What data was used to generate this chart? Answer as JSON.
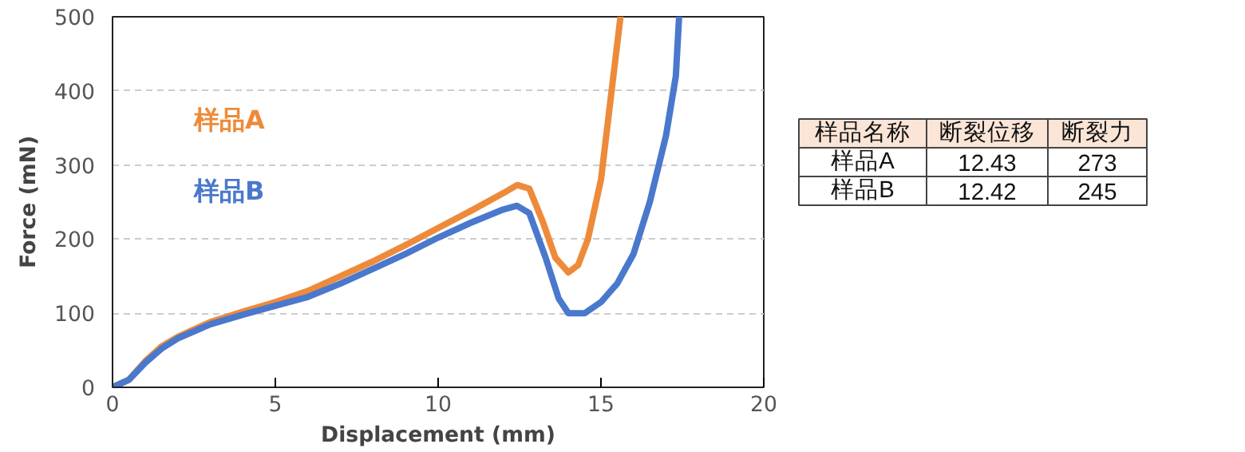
{
  "chart_data": [
    {
      "type": "line",
      "xlabel": "Displacement (mm)",
      "ylabel": "Force (mN)",
      "xlim": [
        0,
        20
      ],
      "ylim": [
        0,
        500
      ],
      "xticks": [
        0,
        5,
        10,
        15,
        20
      ],
      "yticks": [
        0,
        100,
        200,
        300,
        400,
        500
      ],
      "grid": "y",
      "line_style": "solid",
      "series": [
        {
          "name": "样品A",
          "color": "#ed8b3b",
          "x": [
            0,
            0.5,
            1,
            1.5,
            2,
            3,
            4,
            5,
            6,
            7,
            8,
            9,
            10,
            11,
            12,
            12.43,
            12.8,
            13.2,
            13.6,
            14,
            14.3,
            14.6,
            15,
            15.3,
            15.6
          ],
          "values": [
            0,
            10,
            35,
            55,
            68,
            88,
            102,
            115,
            130,
            150,
            170,
            192,
            215,
            238,
            262,
            273,
            268,
            225,
            175,
            155,
            165,
            200,
            280,
            390,
            500
          ]
        },
        {
          "name": "样品B",
          "color": "#4a78cc",
          "x": [
            0,
            0.5,
            1,
            1.5,
            2,
            3,
            4,
            5,
            6,
            7,
            8,
            9,
            10,
            11,
            12,
            12.42,
            12.8,
            13.3,
            13.7,
            14,
            14.5,
            15,
            15.5,
            16,
            16.5,
            17,
            17.3,
            17.4
          ],
          "values": [
            0,
            10,
            33,
            52,
            66,
            85,
            98,
            110,
            122,
            140,
            160,
            180,
            202,
            222,
            240,
            245,
            235,
            175,
            120,
            100,
            100,
            115,
            140,
            180,
            250,
            340,
            420,
            500
          ]
        }
      ]
    },
    {
      "type": "other",
      "annotations": [
        "样品名称",
        "断裂位移",
        "断裂力",
        "样品A",
        "12.43",
        "273",
        "样品B",
        "12.42",
        "245"
      ]
    }
  ]
}
